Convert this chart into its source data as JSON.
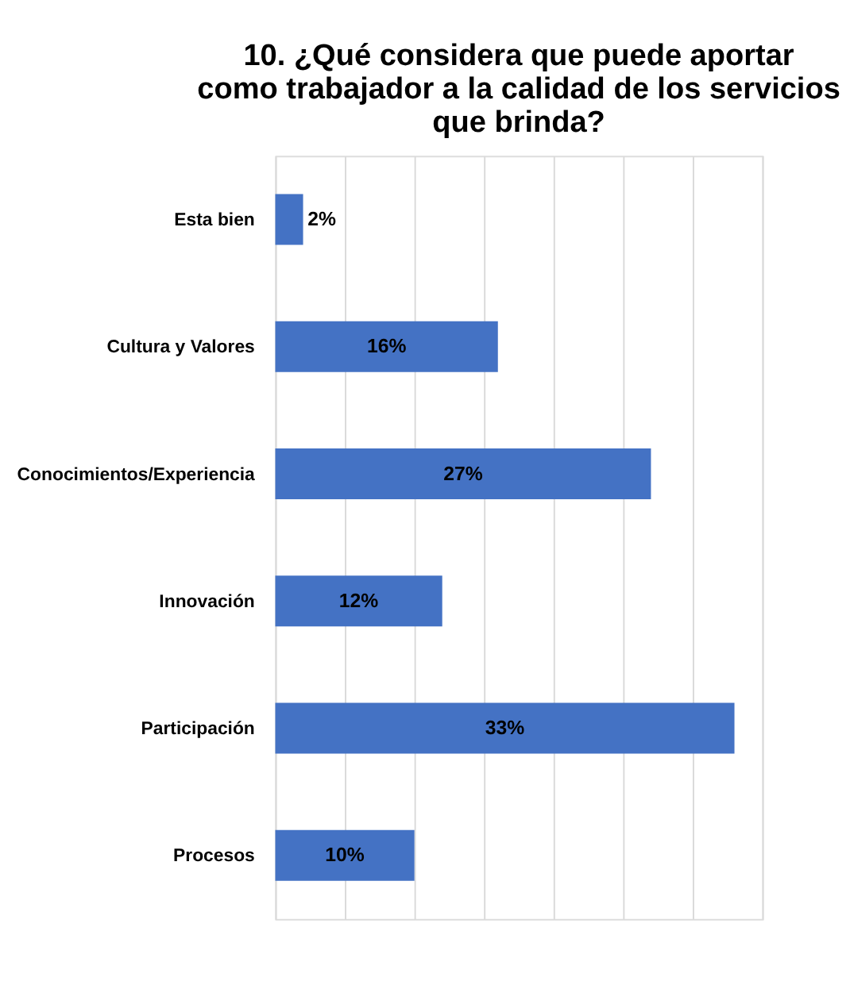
{
  "chart_data": {
    "type": "bar",
    "orientation": "horizontal",
    "title": [
      "10. ¿Qué considera que puede aportar",
      "como trabajador a la calidad de los servicios",
      "que brinda?"
    ],
    "categories": [
      "Esta bien",
      "Cultura y Valores",
      "Conocimientos/Experiencia",
      "Innovación",
      "Participación",
      "Procesos"
    ],
    "values": [
      2,
      16,
      27,
      12,
      33,
      10
    ],
    "value_labels": [
      "2%",
      "16%",
      "27%",
      "12%",
      "33%",
      "10%"
    ],
    "color": "#4472c4",
    "xlim": [
      0,
      35
    ],
    "xticks": [
      {
        "value": 0,
        "label": null
      },
      {
        "value": 5,
        "label": null
      },
      {
        "value": 10,
        "label": null
      },
      {
        "value": 15,
        "label": null
      },
      {
        "value": 20,
        "label": null
      },
      {
        "value": 25,
        "label": null
      },
      {
        "value": 30,
        "label": null
      },
      {
        "value": 35,
        "label": null
      }
    ],
    "grid": "x",
    "tick_labels": "y"
  }
}
